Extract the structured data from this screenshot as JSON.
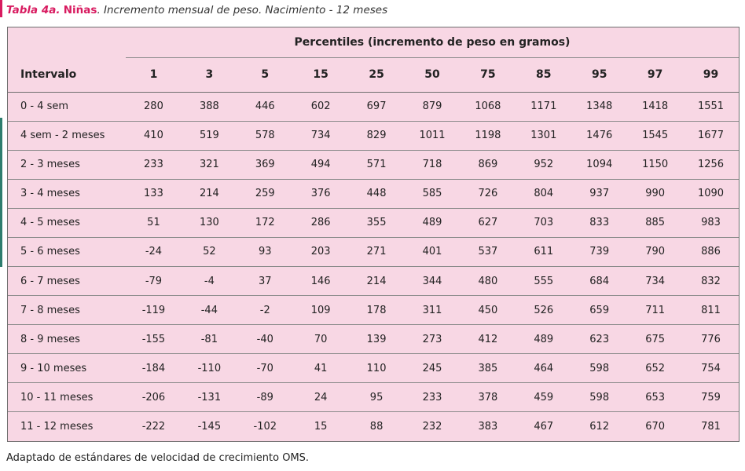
{
  "caption": {
    "number": "Tabla 4a.",
    "subject": "Niñas",
    "description": ". Incremento mensual de peso. Nacimiento - 12 meses"
  },
  "table": {
    "group_header": "Percentiles (incremento de peso en gramos)",
    "interval_header": "Intervalo",
    "columns": [
      "1",
      "3",
      "5",
      "15",
      "25",
      "50",
      "75",
      "85",
      "95",
      "97",
      "99"
    ],
    "rows": [
      {
        "interval": "0 - 4 sem",
        "values": [
          "280",
          "388",
          "446",
          "602",
          "697",
          "879",
          "1068",
          "1171",
          "1348",
          "1418",
          "1551"
        ]
      },
      {
        "interval": "4 sem - 2 meses",
        "values": [
          "410",
          "519",
          "578",
          "734",
          "829",
          "1011",
          "1198",
          "1301",
          "1476",
          "1545",
          "1677"
        ]
      },
      {
        "interval": "2 - 3 meses",
        "values": [
          "233",
          "321",
          "369",
          "494",
          "571",
          "718",
          "869",
          "952",
          "1094",
          "1150",
          "1256"
        ]
      },
      {
        "interval": "3 - 4 meses",
        "values": [
          "133",
          "214",
          "259",
          "376",
          "448",
          "585",
          "726",
          "804",
          "937",
          "990",
          "1090"
        ]
      },
      {
        "interval": "4 - 5 meses",
        "values": [
          "51",
          "130",
          "172",
          "286",
          "355",
          "489",
          "627",
          "703",
          "833",
          "885",
          "983"
        ]
      },
      {
        "interval": "5 - 6 meses",
        "values": [
          "-24",
          "52",
          "93",
          "203",
          "271",
          "401",
          "537",
          "611",
          "739",
          "790",
          "886"
        ]
      },
      {
        "interval": "6 - 7 meses",
        "values": [
          "-79",
          "-4",
          "37",
          "146",
          "214",
          "344",
          "480",
          "555",
          "684",
          "734",
          "832"
        ]
      },
      {
        "interval": "7 - 8 meses",
        "values": [
          "-119",
          "-44",
          "-2",
          "109",
          "178",
          "311",
          "450",
          "526",
          "659",
          "711",
          "811"
        ]
      },
      {
        "interval": "8 - 9 meses",
        "values": [
          "-155",
          "-81",
          "-40",
          "70",
          "139",
          "273",
          "412",
          "489",
          "623",
          "675",
          "776"
        ]
      },
      {
        "interval": "9 - 10 meses",
        "values": [
          "-184",
          "-110",
          "-70",
          "41",
          "110",
          "245",
          "385",
          "464",
          "598",
          "652",
          "754"
        ]
      },
      {
        "interval": "10 - 11 meses",
        "values": [
          "-206",
          "-131",
          "-89",
          "24",
          "95",
          "233",
          "378",
          "459",
          "598",
          "653",
          "759"
        ]
      },
      {
        "interval": "11 - 12 meses",
        "values": [
          "-222",
          "-145",
          "-102",
          "15",
          "88",
          "232",
          "383",
          "467",
          "612",
          "670",
          "781"
        ]
      }
    ]
  },
  "footnote": "Adaptado de estándares de velocidad de crecimiento OMS.",
  "colors": {
    "table_background": "#f8d7e4",
    "accent_magenta": "#d81b60",
    "accent_green": "#2e7d6e"
  }
}
